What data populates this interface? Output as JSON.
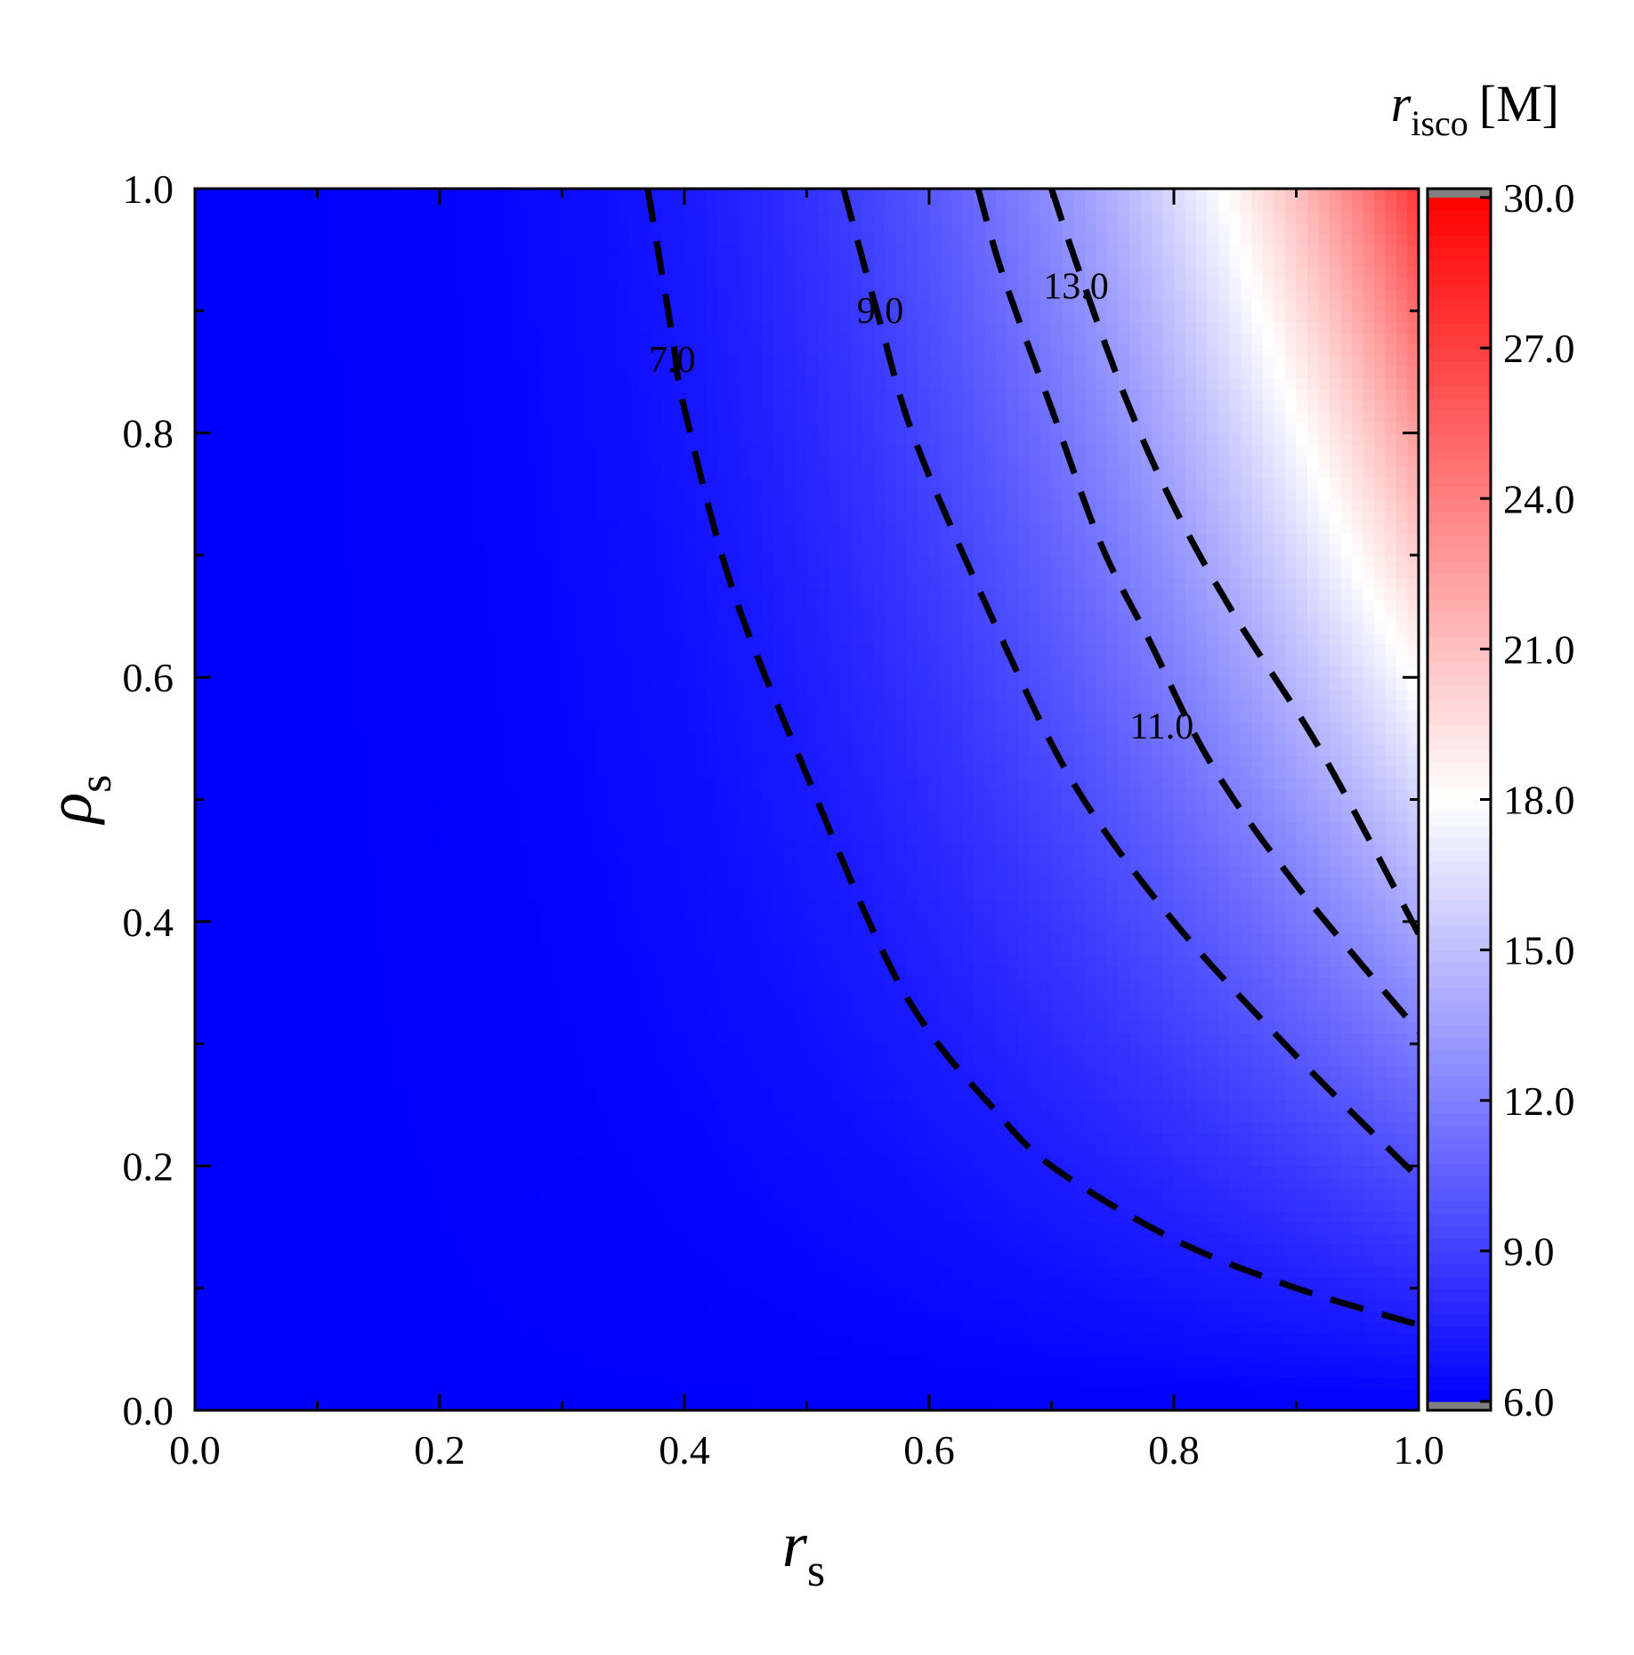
{
  "chart_data": {
    "type": "heatmap",
    "title": "",
    "xlabel": "",
    "xlabel_main": "r",
    "xlabel_sub": "s",
    "ylabel_main": "ρ",
    "ylabel_sub": "s",
    "xlim": [
      0.0,
      1.0
    ],
    "ylim": [
      0.0,
      1.0
    ],
    "x_ticks": [
      "0.0",
      "0.2",
      "0.4",
      "0.6",
      "0.8",
      "1.0"
    ],
    "y_ticks": [
      "0.0",
      "0.2",
      "0.4",
      "0.6",
      "0.8",
      "1.0"
    ],
    "colorbar": {
      "title_main": "r",
      "title_sub": "isco",
      "title_unit": "[M]",
      "range": [
        6.0,
        30.0
      ],
      "ticks": [
        "6.0",
        "9.0",
        "12.0",
        "15.0",
        "18.0",
        "21.0",
        "24.0",
        "27.0",
        "30.0"
      ],
      "colors": {
        "low": "#0000ff",
        "mid": "#ffffff",
        "high": "#ff0000",
        "out_of_range": "#808080"
      },
      "mid_value": 18.0
    },
    "contours": [
      {
        "label": "7.0",
        "level": 7.0,
        "style": "dashed",
        "points": [
          [
            0.37,
            1.0
          ],
          [
            0.39,
            0.88
          ],
          [
            0.4,
            0.82
          ],
          [
            0.44,
            0.67
          ],
          [
            0.5,
            0.52
          ],
          [
            0.56,
            0.38
          ],
          [
            0.6,
            0.31
          ],
          [
            0.65,
            0.25
          ],
          [
            0.7,
            0.2
          ],
          [
            0.8,
            0.14
          ],
          [
            0.9,
            0.1
          ],
          [
            1.0,
            0.07
          ]
        ]
      },
      {
        "label": "9.0",
        "level": 9.0,
        "style": "dashed",
        "points": [
          [
            0.53,
            1.0
          ],
          [
            0.56,
            0.89
          ],
          [
            0.59,
            0.79
          ],
          [
            0.66,
            0.63
          ],
          [
            0.72,
            0.51
          ],
          [
            0.8,
            0.4
          ],
          [
            0.9,
            0.29
          ],
          [
            1.0,
            0.19
          ]
        ]
      },
      {
        "label": "11.0",
        "level": 11.0,
        "style": "dashed",
        "points": [
          [
            0.64,
            1.0
          ],
          [
            0.66,
            0.93
          ],
          [
            0.7,
            0.82
          ],
          [
            0.74,
            0.71
          ],
          [
            0.78,
            0.63
          ],
          [
            0.83,
            0.53
          ],
          [
            0.9,
            0.43
          ],
          [
            1.0,
            0.31
          ]
        ]
      },
      {
        "label": "13.0",
        "level": 13.0,
        "style": "dashed",
        "points": [
          [
            0.7,
            1.0
          ],
          [
            0.72,
            0.94
          ],
          [
            0.76,
            0.83
          ],
          [
            0.8,
            0.74
          ],
          [
            0.85,
            0.65
          ],
          [
            0.92,
            0.54
          ],
          [
            1.0,
            0.39
          ]
        ]
      }
    ],
    "contour_labels": [
      {
        "text": "7.0",
        "x": 0.39,
        "y": 0.85
      },
      {
        "text": "9.0",
        "x": 0.56,
        "y": 0.89
      },
      {
        "text": "11.0",
        "x": 0.79,
        "y": 0.55
      },
      {
        "text": "13.0",
        "x": 0.72,
        "y": 0.91
      }
    ],
    "grid": false,
    "legend": "colorbar-right"
  }
}
